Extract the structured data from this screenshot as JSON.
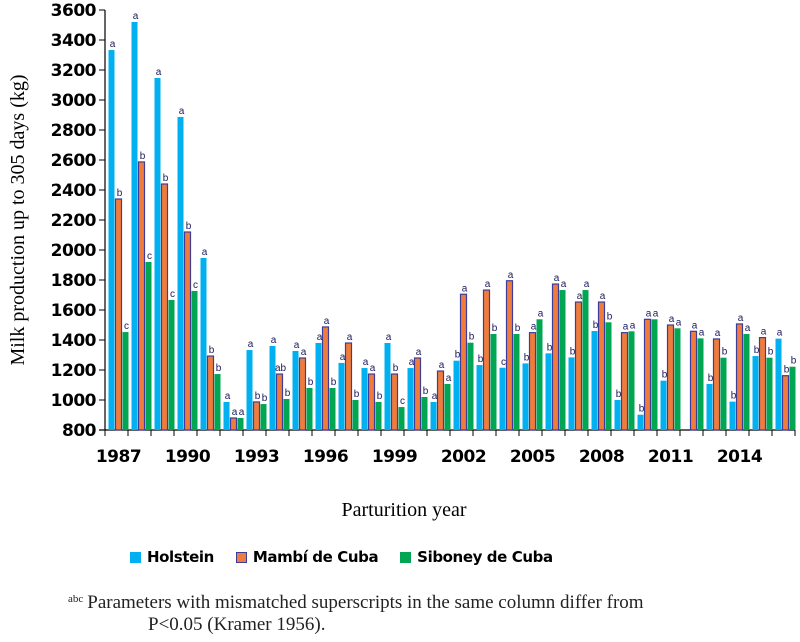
{
  "chart_data": {
    "type": "bar",
    "title": "",
    "xlabel": "Parturition year",
    "ylabel": "Milk production up to 305 days (kg)",
    "ylim": [
      800,
      3600
    ],
    "yticks": [
      800,
      1000,
      1200,
      1400,
      1600,
      1800,
      2000,
      2200,
      2400,
      2600,
      2800,
      3000,
      3200,
      3400,
      3600
    ],
    "grid": false,
    "legend_position": "bottom",
    "categories": [
      "1987",
      "1988",
      "1989",
      "1990",
      "1991",
      "1992",
      "1993",
      "1994",
      "1995",
      "1996",
      "1997",
      "1998",
      "1999",
      "2000",
      "2001",
      "2002",
      "2003",
      "2004",
      "2005",
      "2006",
      "2007",
      "2008",
      "2009",
      "2010",
      "2011",
      "2012",
      "2013",
      "2014",
      "2015",
      "2016"
    ],
    "xtick_labels_shown": [
      "1987",
      "1990",
      "1993",
      "1996",
      "1999",
      "2002",
      "2005",
      "2008",
      "2011",
      "2014"
    ],
    "series": [
      {
        "name": "Holstein",
        "color": "#00B0F0",
        "values": [
          3333,
          3520,
          3147,
          2887,
          1947,
          987,
          1333,
          1360,
          1327,
          1380,
          1247,
          1213,
          1380,
          1213,
          987,
          1262,
          1233,
          1215,
          1244,
          1311,
          1284,
          1460,
          1000,
          902,
          1129,
          null,
          1107,
          989,
          1293,
          1409
        ],
        "letters": [
          "a",
          "a",
          "a",
          "a",
          "a",
          "a",
          "a",
          "a",
          "a",
          "a",
          "a",
          "a",
          "a",
          "a",
          "a",
          "b",
          "b",
          "c",
          "b",
          "b",
          "b",
          "b",
          "b",
          "b",
          "b",
          "",
          "b",
          "b",
          "b",
          "a"
        ]
      },
      {
        "name": "Mambí de Cuba",
        "color": "#F07C3C",
        "border": "#3C3C9C",
        "values": [
          2340,
          2587,
          2440,
          2120,
          1293,
          880,
          987,
          1173,
          1280,
          1487,
          1380,
          1173,
          1173,
          1280,
          1193,
          1705,
          1733,
          1795,
          1449,
          1773,
          1653,
          1653,
          1449,
          1538,
          1500,
          1458,
          1407,
          1507,
          1416,
          1162
        ],
        "letters": [
          "b",
          "b",
          "b",
          "b",
          "b",
          "a",
          "b",
          "ab",
          "a",
          "a",
          "a",
          "a",
          "b",
          "a",
          "a",
          "a",
          "a",
          "a",
          "a",
          "a",
          "a",
          "a",
          "a",
          "a",
          "a",
          "a",
          "a",
          "a",
          "a",
          "b"
        ]
      },
      {
        "name": "Siboney de Cuba",
        "color": "#00A651",
        "values": [
          1453,
          1920,
          1667,
          1727,
          1173,
          880,
          973,
          1007,
          1080,
          1080,
          1000,
          987,
          953,
          1020,
          1107,
          1382,
          1440,
          1440,
          1538,
          1733,
          1733,
          1518,
          1458,
          1538,
          1478,
          1411,
          1282,
          1440,
          1282,
          1222
        ],
        "letters": [
          "c",
          "c",
          "c",
          "c",
          "b",
          "a",
          "b",
          "b",
          "b",
          "b",
          "b",
          "b",
          "c",
          "b",
          "a",
          "b",
          "b",
          "b",
          "a",
          "a",
          "a",
          "b",
          "a",
          "a",
          "a",
          "a",
          "b",
          "a",
          "b",
          "b"
        ]
      }
    ]
  },
  "legend": {
    "items": [
      {
        "label": "Holstein"
      },
      {
        "label": "Mambí de Cuba"
      },
      {
        "label": "Siboney de Cuba"
      }
    ]
  },
  "footnote": {
    "superscript": "abc",
    "line1": "Parameters with mismatched superscripts in the same column differ from",
    "line2": "P<0.05 (Kramer 1956)."
  }
}
